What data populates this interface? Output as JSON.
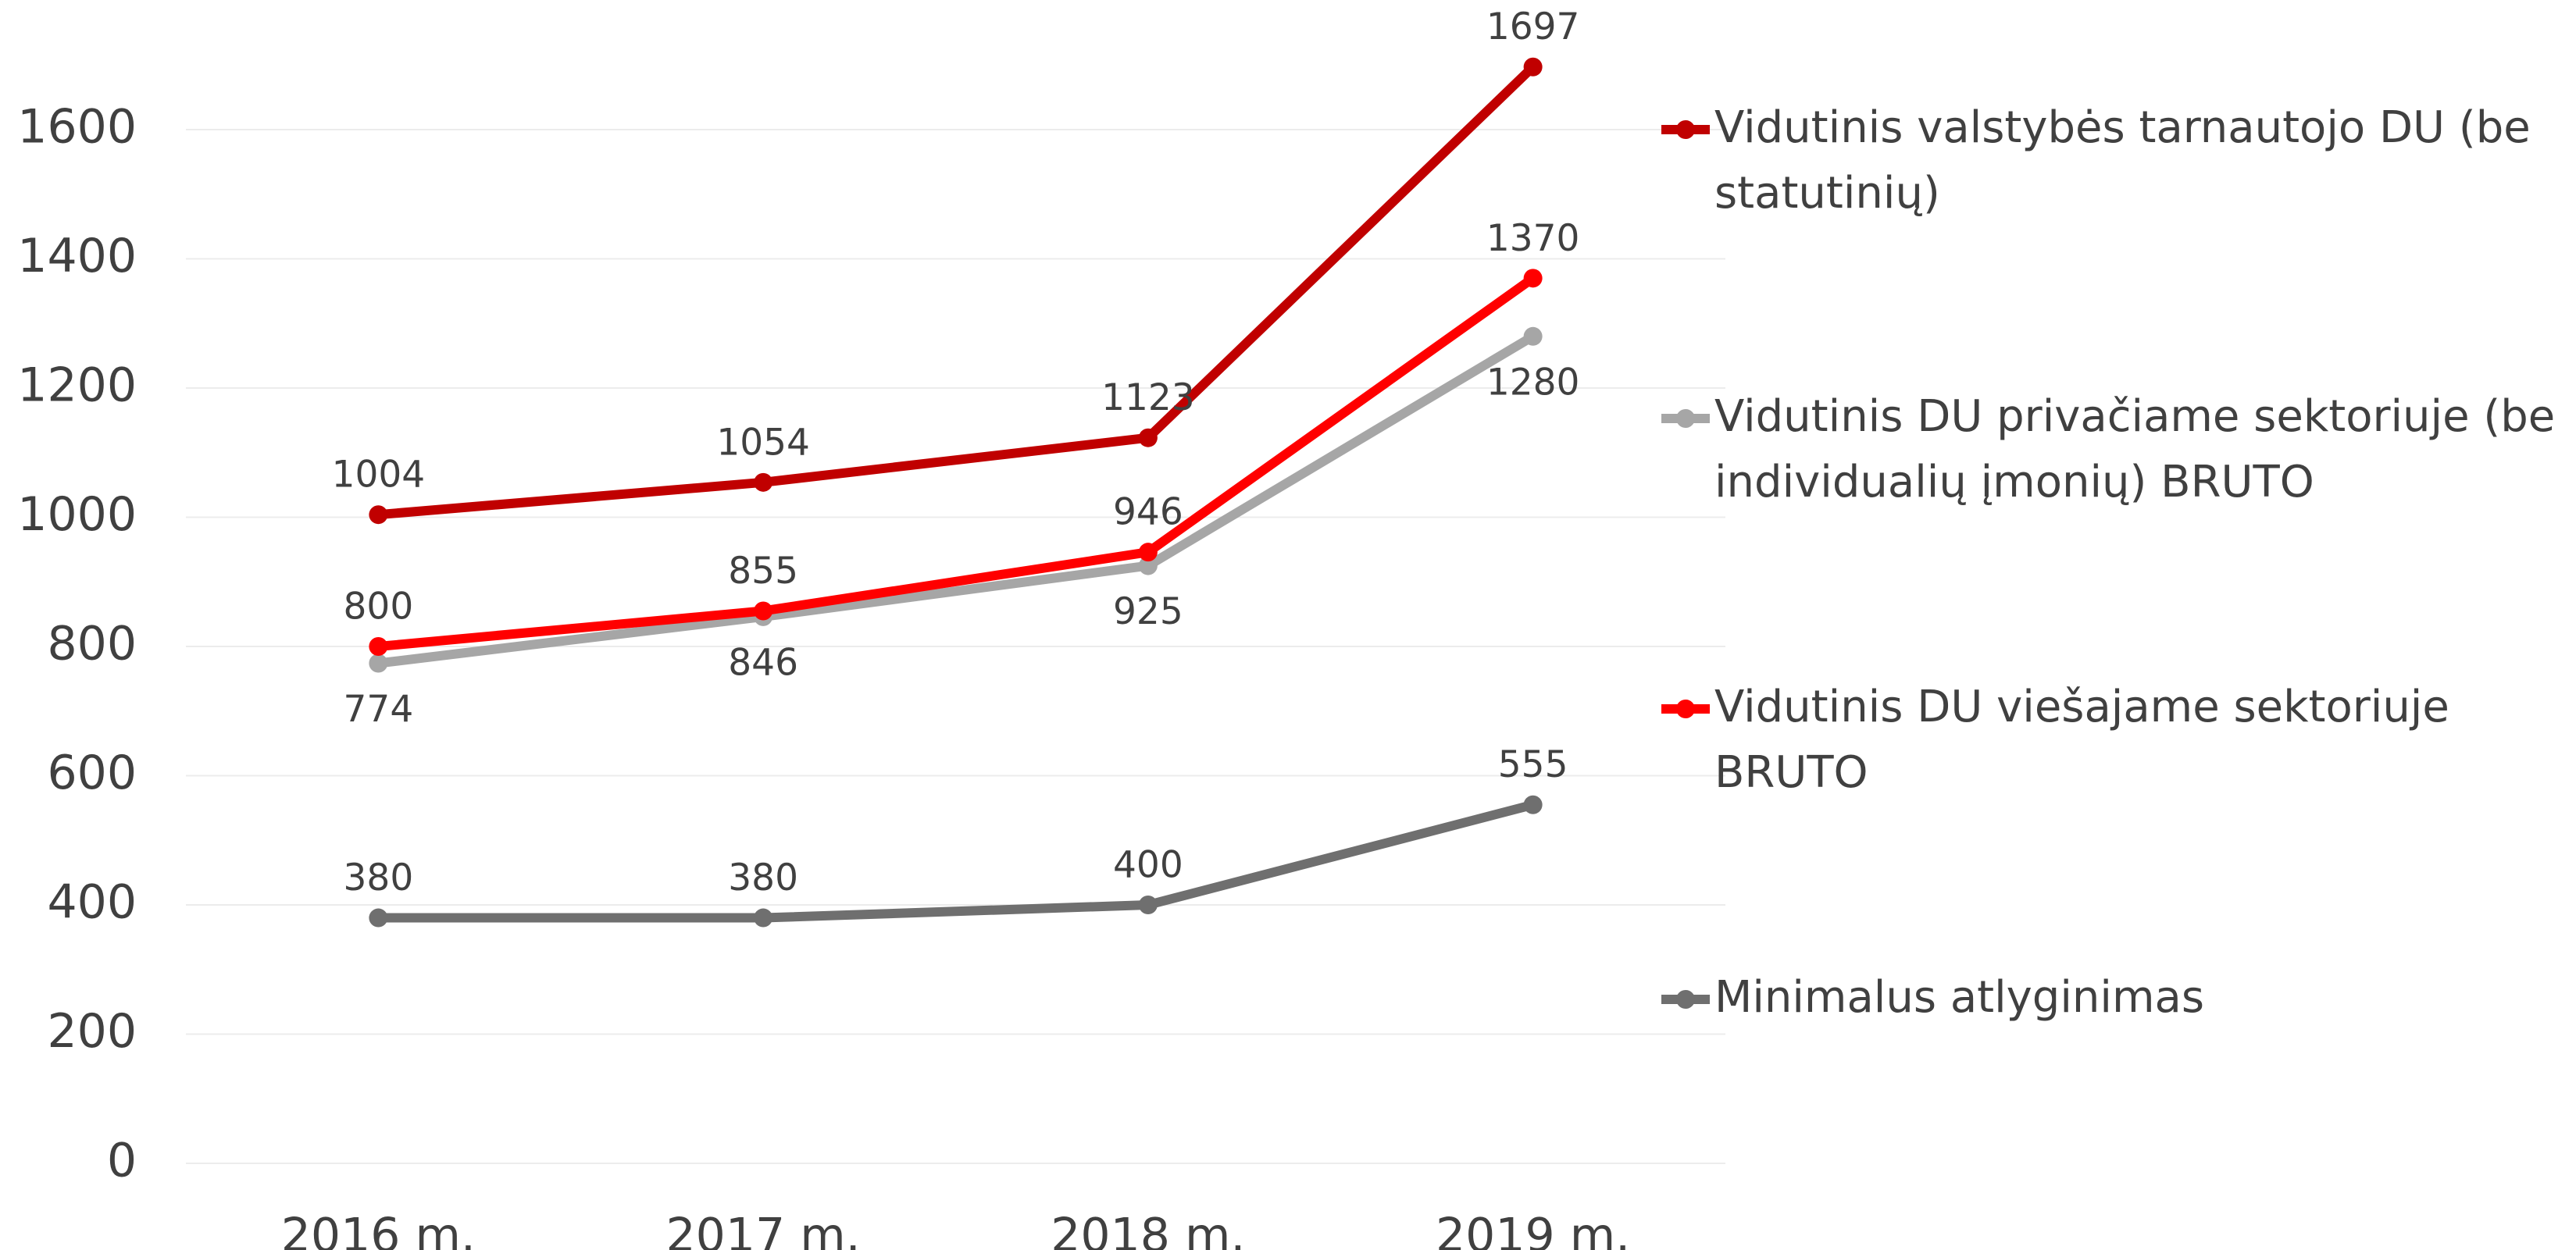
{
  "chart_data": {
    "type": "line",
    "categories": [
      "2016 m.",
      "2017 m.",
      "2018 m.",
      "2019 m."
    ],
    "series": [
      {
        "name": "Vidutinis valstybės tarnautojo DU (be statutinių)",
        "color": "#c00000",
        "values": [
          1004,
          1054,
          1123,
          1697
        ]
      },
      {
        "name": "Vidutinis DU privačiame sektoriuje (be individualių įmonių) BRUTO",
        "color": "#a6a6a6",
        "values": [
          774,
          846,
          925,
          1280
        ]
      },
      {
        "name": "Vidutinis DU viešajame sektoriuje BRUTO",
        "color": "#ff0000",
        "values": [
          800,
          855,
          946,
          1370
        ]
      },
      {
        "name": "Minimalus atlyginimas",
        "color": "#6f6f6f",
        "values": [
          380,
          380,
          400,
          555
        ]
      }
    ],
    "ylim": [
      0,
      1600
    ],
    "yticks": [
      0,
      200,
      400,
      600,
      800,
      1000,
      1200,
      1400,
      1600
    ],
    "grid": true,
    "legend": "right"
  }
}
